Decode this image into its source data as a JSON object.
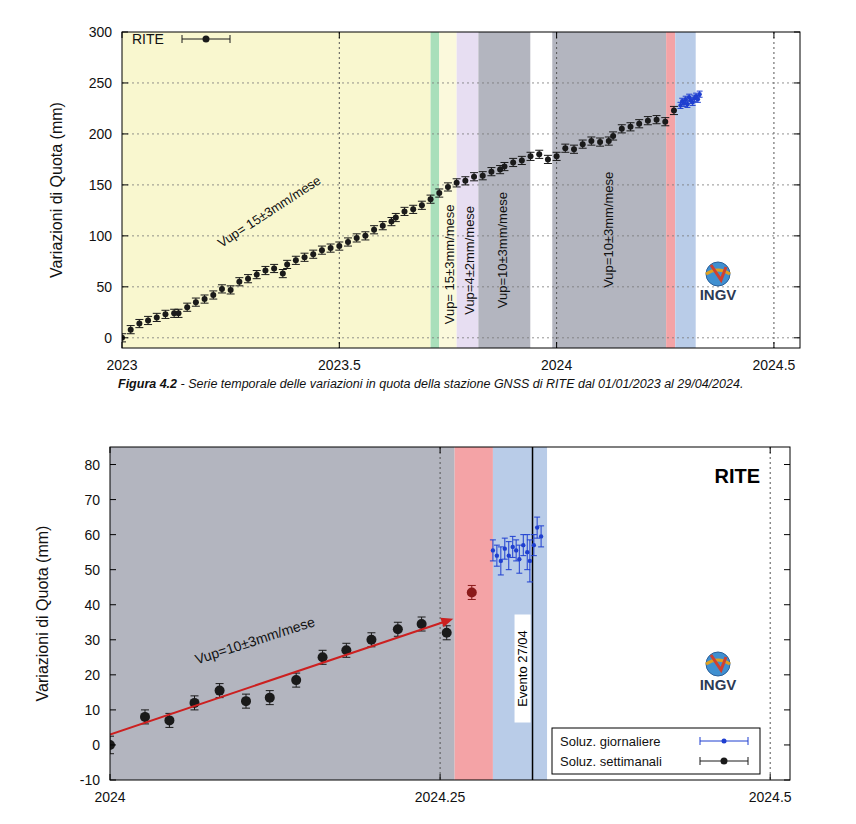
{
  "chart_data": [
    {
      "type": "scatter",
      "y_label": "Variazioni di Quota (mm)",
      "xlim": [
        2023,
        2024.56
      ],
      "xticks": [
        2023,
        2023.5,
        2024,
        2024.5
      ],
      "ylim": [
        -10,
        300
      ],
      "yticks": [
        0,
        50,
        100,
        150,
        200,
        250,
        300
      ],
      "grid": true,
      "legend": "top-left",
      "logo_text": "INGV",
      "bands": [
        {
          "from": 2023,
          "to": 2023.71,
          "color": "#f9f7cf"
        },
        {
          "from": 2023.71,
          "to": 2023.73,
          "color": "#a9dfbb"
        },
        {
          "from": 2023.73,
          "to": 2023.77,
          "color": "#fbf9dc"
        },
        {
          "from": 2023.77,
          "to": 2023.82,
          "color": "#e7def2"
        },
        {
          "from": 2023.82,
          "to": 2023.94,
          "color": "#b3b5bf"
        },
        {
          "from": 2023.94,
          "to": 2023.99,
          "color": "#ffffff"
        },
        {
          "from": 2023.99,
          "to": 2024.252,
          "color": "#b3b5bf"
        },
        {
          "from": 2024.252,
          "to": 2024.273,
          "color": "#f4a3a6"
        },
        {
          "from": 2024.273,
          "to": 2024.32,
          "color": "#b9cce8"
        }
      ],
      "annotations": [
        {
          "text": "Vup= 15±3mm/mese",
          "x": 2023.34,
          "y": 123
        },
        {
          "text": "Vup= 15±3mm/mese",
          "x": 2023.757,
          "y": 72
        },
        {
          "text": "Vup=4±2mm/mese",
          "x": 2023.803,
          "y": 76
        },
        {
          "text": "Vup=10±3mm/mese",
          "x": 2023.878,
          "y": 86
        },
        {
          "text": "Vup=10±3mm/mese",
          "x": 2024.122,
          "y": 106
        }
      ],
      "series": [
        {
          "name": "RITE",
          "type": "scatter",
          "color": "#1a1a1a",
          "marker": "circle",
          "x": [
            2023.0,
            2023.02,
            2023.04,
            2023.06,
            2023.08,
            2023.1,
            2023.12,
            2023.13,
            2023.15,
            2023.17,
            2023.19,
            2023.21,
            2023.23,
            2023.25,
            2023.27,
            2023.29,
            2023.31,
            2023.33,
            2023.35,
            2023.37,
            2023.38,
            2023.4,
            2023.42,
            2023.44,
            2023.46,
            2023.48,
            2023.5,
            2023.52,
            2023.54,
            2023.56,
            2023.58,
            2023.6,
            2023.62,
            2023.63,
            2023.65,
            2023.67,
            2023.69,
            2023.71,
            2023.73,
            2023.75,
            2023.77,
            2023.79,
            2023.81,
            2023.83,
            2023.85,
            2023.87,
            2023.88,
            2023.9,
            2023.92,
            2023.94,
            2023.96,
            2023.98,
            2024.0,
            2024.02,
            2024.04,
            2024.06,
            2024.08,
            2024.1,
            2024.12,
            2024.13,
            2024.15,
            2024.17,
            2024.19,
            2024.21,
            2024.23,
            2024.25,
            2024.27
          ],
          "values": [
            0,
            8,
            14,
            17,
            20,
            23,
            24,
            24,
            30,
            35,
            38,
            42,
            48,
            47,
            55,
            58,
            62,
            66,
            68,
            63,
            72,
            76,
            79,
            82,
            86,
            88,
            90,
            94,
            98,
            100,
            106,
            110,
            114,
            118,
            124,
            126,
            130,
            136,
            142,
            148,
            152,
            154,
            158,
            159,
            163,
            165,
            168,
            172,
            174,
            178,
            180,
            175,
            178,
            186,
            185,
            190,
            193,
            192,
            193,
            198,
            205,
            207,
            210,
            213,
            214,
            212,
            223
          ],
          "error": [
            4,
            4,
            4,
            4,
            4,
            4,
            4,
            4,
            4,
            4,
            4,
            4,
            4,
            4,
            4,
            4,
            4,
            4,
            4,
            4,
            4,
            4,
            4,
            4,
            4,
            4,
            4,
            4,
            4,
            4,
            4,
            4,
            4,
            4,
            4,
            4,
            4,
            4,
            4,
            4,
            4,
            4,
            4,
            4,
            4,
            4,
            4,
            4,
            4,
            4,
            4,
            4,
            4,
            4,
            4,
            4,
            4,
            4,
            4,
            4,
            4,
            4,
            4,
            4,
            4,
            4,
            4
          ]
        },
        {
          "type": "scatter",
          "color": "#1f3fd0",
          "marker": "dot",
          "x": [
            2024.285,
            2024.289,
            2024.293,
            2024.297,
            2024.301,
            2024.305,
            2024.309,
            2024.313,
            2024.317,
            2024.321,
            2024.325,
            2024.329
          ],
          "values": [
            228,
            232,
            230,
            234,
            229,
            236,
            233,
            231,
            235,
            237,
            234,
            239
          ],
          "error": [
            3,
            3,
            3,
            3,
            3,
            3,
            3,
            3,
            3,
            3,
            3,
            3
          ]
        }
      ]
    },
    {
      "type": "scatter",
      "title": "RITE",
      "y_label": "Variazioni di Quota (mm)",
      "xlim": [
        2024,
        2024.515
      ],
      "xticks": [
        2024,
        2024.25,
        2024.5
      ],
      "ylim": [
        -10,
        85
      ],
      "yticks": [
        -10,
        0,
        10,
        20,
        30,
        40,
        50,
        60,
        70,
        80
      ],
      "grid": "x",
      "legend": "bottom-right",
      "logo_text": "INGV",
      "bands": [
        {
          "from": 2024,
          "to": 2024.261,
          "color": "#b3b5bf"
        },
        {
          "from": 2024.261,
          "to": 2024.29,
          "color": "#f4a3a6"
        },
        {
          "from": 2024.29,
          "to": 2024.331,
          "color": "#b9cce8"
        }
      ],
      "events": [
        {
          "x": 2024.32,
          "label": "Evento 27/04"
        }
      ],
      "annotations": [
        {
          "text": "Vup=10±3mm/mese",
          "x": 2024.11,
          "y": 29.5
        }
      ],
      "series": [
        {
          "name": "Soluz. giornaliere",
          "type": "scatter",
          "color": "#1f3fd0",
          "marker": "dot",
          "x": [
            2024.29,
            2024.293,
            2024.296,
            2024.299,
            2024.302,
            2024.305,
            2024.3076,
            2024.31,
            2024.313,
            2024.316,
            2024.318,
            2024.321,
            2024.3235,
            2024.3265
          ],
          "values": [
            55.5,
            54,
            52.5,
            56,
            54,
            56.5,
            55.5,
            53,
            57,
            55,
            52.5,
            57,
            62,
            59.5
          ],
          "error": [
            3,
            3,
            4,
            3,
            4,
            3,
            3,
            4,
            3,
            5,
            6,
            3,
            3,
            3
          ]
        },
        {
          "name": "Soluz. settimanali",
          "type": "scatter",
          "color": "#1a1a1a",
          "marker": "circle",
          "colors": [
            "#1a1a1a",
            "#1a1a1a",
            "#1a1a1a",
            "#1a1a1a",
            "#1a1a1a",
            "#1a1a1a",
            "#1a1a1a",
            "#1a1a1a",
            "#1a1a1a",
            "#1a1a1a",
            "#1a1a1a",
            "#1a1a1a",
            "#1a1a1a",
            "#1a1a1a",
            "#8b1a1a"
          ],
          "x": [
            2024.0,
            2024.0265,
            2024.045,
            2024.064,
            2024.083,
            2024.103,
            2024.121,
            2024.141,
            2024.161,
            2024.179,
            2024.198,
            2024.218,
            2024.236,
            2024.255,
            2024.274
          ],
          "values": [
            0,
            8,
            7,
            12,
            15.5,
            12.5,
            13.5,
            18.5,
            25,
            27,
            30,
            33,
            34.5,
            32,
            43.5
          ],
          "error": [
            2.5,
            2,
            2,
            2,
            2,
            2,
            2,
            2,
            2,
            2,
            2,
            2,
            2,
            2,
            2
          ]
        },
        {
          "type": "line",
          "line_style": "arrow",
          "color": "#cc2020",
          "x": [
            2024,
            2024.26
          ],
          "values": [
            3,
            36
          ]
        }
      ]
    }
  ],
  "figure_caption": {
    "label": "Figura 4.2",
    "text": " - Serie temporale delle variazioni in quota della stazione GNSS di RITE dal 01/01/2023 al 29/04/2024."
  }
}
